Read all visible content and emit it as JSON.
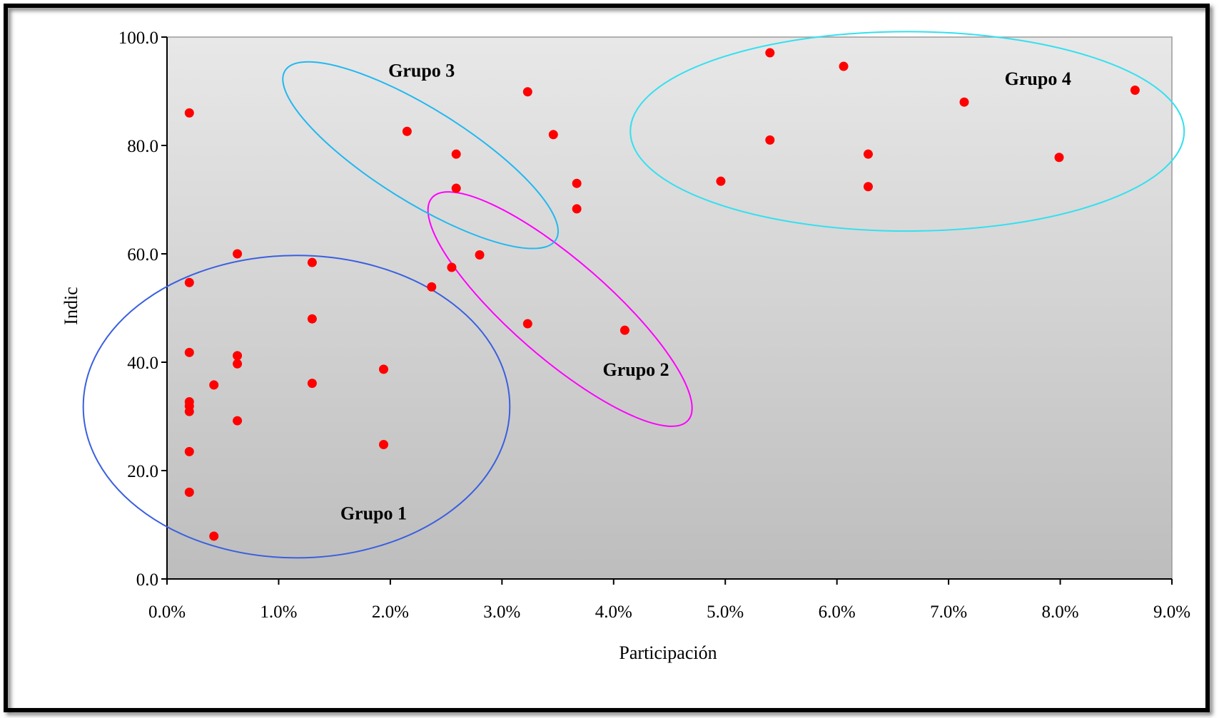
{
  "chart_data": {
    "type": "scatter",
    "xlabel": "Participación",
    "ylabel": "Indic",
    "xlim": [
      0,
      0.09
    ],
    "ylim": [
      0,
      100
    ],
    "x_ticks": [
      0,
      0.01,
      0.02,
      0.03,
      0.04,
      0.05,
      0.06,
      0.07,
      0.08,
      0.09
    ],
    "x_tick_labels": [
      "0.0%",
      "1.0%",
      "2.0%",
      "3.0%",
      "4.0%",
      "5.0%",
      "6.0%",
      "7.0%",
      "8.0%",
      "9.0%"
    ],
    "y_ticks": [
      0,
      20,
      40,
      60,
      80,
      100
    ],
    "y_tick_labels": [
      "0.0",
      "20.0",
      "40.0",
      "60.0",
      "80.0",
      "100.0"
    ],
    "point_color": "#ff0000",
    "plot_background": [
      "#e8e8e8",
      "#bdbdbd"
    ],
    "grid": false,
    "legend": "none",
    "series": [
      {
        "points": [
          {
            "x": 0.002,
            "y": 86.0
          },
          {
            "x": 0.002,
            "y": 54.7
          },
          {
            "x": 0.002,
            "y": 41.8
          },
          {
            "x": 0.002,
            "y": 32.7
          },
          {
            "x": 0.002,
            "y": 31.9
          },
          {
            "x": 0.002,
            "y": 30.9
          },
          {
            "x": 0.002,
            "y": 23.5
          },
          {
            "x": 0.002,
            "y": 16.0
          },
          {
            "x": 0.0042,
            "y": 35.8
          },
          {
            "x": 0.0042,
            "y": 7.9
          },
          {
            "x": 0.0063,
            "y": 60.0
          },
          {
            "x": 0.0063,
            "y": 41.2
          },
          {
            "x": 0.0063,
            "y": 39.7
          },
          {
            "x": 0.0063,
            "y": 29.2
          },
          {
            "x": 0.013,
            "y": 58.4
          },
          {
            "x": 0.013,
            "y": 48.0
          },
          {
            "x": 0.013,
            "y": 36.1
          },
          {
            "x": 0.0194,
            "y": 38.7
          },
          {
            "x": 0.0194,
            "y": 24.8
          },
          {
            "x": 0.0237,
            "y": 53.9
          },
          {
            "x": 0.0255,
            "y": 57.5
          },
          {
            "x": 0.028,
            "y": 59.8
          },
          {
            "x": 0.0323,
            "y": 47.1
          },
          {
            "x": 0.041,
            "y": 45.9
          },
          {
            "x": 0.0215,
            "y": 82.6
          },
          {
            "x": 0.0259,
            "y": 78.4
          },
          {
            "x": 0.0259,
            "y": 72.1
          },
          {
            "x": 0.0323,
            "y": 89.9
          },
          {
            "x": 0.0346,
            "y": 82.0
          },
          {
            "x": 0.0367,
            "y": 73.0
          },
          {
            "x": 0.0367,
            "y": 68.3
          },
          {
            "x": 0.0496,
            "y": 73.4
          },
          {
            "x": 0.054,
            "y": 97.1
          },
          {
            "x": 0.054,
            "y": 81.0
          },
          {
            "x": 0.0606,
            "y": 94.6
          },
          {
            "x": 0.0628,
            "y": 78.4
          },
          {
            "x": 0.0628,
            "y": 72.4
          },
          {
            "x": 0.0714,
            "y": 88.0
          },
          {
            "x": 0.0799,
            "y": 77.8
          },
          {
            "x": 0.0867,
            "y": 90.2
          }
        ]
      }
    ],
    "annotations": [
      {
        "text": "Grupo 1",
        "x": 0.0185,
        "y": 11.0,
        "ellipse": {
          "cx": 0.0116,
          "cy": 31.8,
          "rx": 0.0191,
          "ry": 27.9,
          "rot": 0,
          "color": "#3a5fe0"
        }
      },
      {
        "text": "Grupo 2",
        "x": 0.042,
        "y": 37.5,
        "ellipse": {
          "cx": 0.0352,
          "cy": 49.8,
          "rx": 0.0152,
          "ry": 9.0,
          "rot": 41,
          "color": "#ff00ff"
        }
      },
      {
        "text": "Grupo 3",
        "x": 0.0228,
        "y": 92.7,
        "ellipse": {
          "cx": 0.0227,
          "cy": 78.2,
          "rx": 0.0143,
          "ry": 8.6,
          "rot": 32,
          "color": "#22b8f0"
        }
      },
      {
        "text": "Grupo 4",
        "x": 0.078,
        "y": 91.2,
        "ellipse": {
          "cx": 0.0663,
          "cy": 82.6,
          "rx": 0.0248,
          "ry": 18.4,
          "rot": 0,
          "color": "#33e0f0"
        }
      }
    ]
  }
}
